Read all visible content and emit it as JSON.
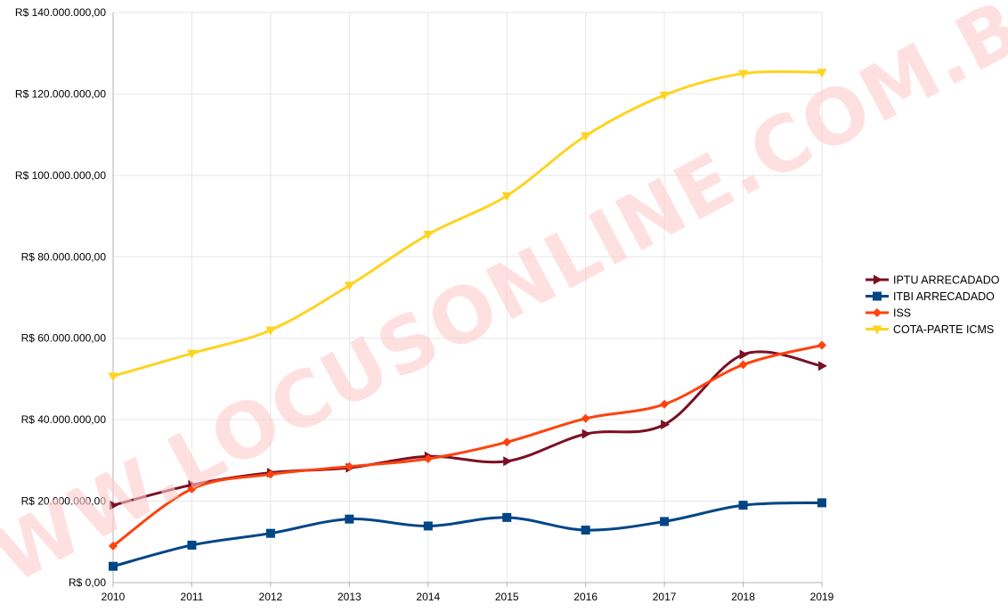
{
  "watermark": "WWW.LOCUSONLINE.COM.BR",
  "chart_data": {
    "type": "line",
    "title": "",
    "xlabel": "",
    "ylabel": "",
    "x": [
      "2010",
      "2011",
      "2012",
      "2013",
      "2014",
      "2015",
      "2016",
      "2017",
      "2018",
      "2019"
    ],
    "ylim": [
      0,
      140000000
    ],
    "yticks": [
      0,
      20000000,
      40000000,
      60000000,
      80000000,
      100000000,
      120000000,
      140000000
    ],
    "ytick_labels": [
      "R$ 0,00",
      "R$ 20.000.000,00",
      "R$ 40.000.000,00",
      "R$ 60.000.000,00",
      "R$ 80.000.000,00",
      "R$ 100.000.000,00",
      "R$ 120.000.000,00",
      "R$ 140.000.000,00"
    ],
    "grid": true,
    "legend_position": "right",
    "series": [
      {
        "name": "IPTU ARRECADADO",
        "color": "#7b0f24",
        "marker": "triangle-right",
        "values": [
          19000000,
          24000000,
          27000000,
          28200000,
          31000000,
          29800000,
          36500000,
          38800000,
          56000000,
          53200000
        ]
      },
      {
        "name": "ITBI ARRECADADO",
        "color": "#004586",
        "marker": "square",
        "values": [
          4000000,
          9200000,
          12100000,
          15600000,
          13900000,
          16000000,
          12900000,
          15000000,
          19000000,
          19600000
        ]
      },
      {
        "name": "ISS",
        "color": "#ff420e",
        "marker": "diamond",
        "values": [
          9000000,
          23000000,
          26600000,
          28500000,
          30400000,
          34500000,
          40300000,
          43800000,
          53500000,
          58300000
        ]
      },
      {
        "name": "COTA-PARTE ICMS",
        "color": "#ffd320",
        "marker": "triangle-down",
        "values": [
          50700000,
          56300000,
          62000000,
          73000000,
          85500000,
          95000000,
          109700000,
          119700000,
          125000000,
          125300000
        ]
      }
    ]
  }
}
